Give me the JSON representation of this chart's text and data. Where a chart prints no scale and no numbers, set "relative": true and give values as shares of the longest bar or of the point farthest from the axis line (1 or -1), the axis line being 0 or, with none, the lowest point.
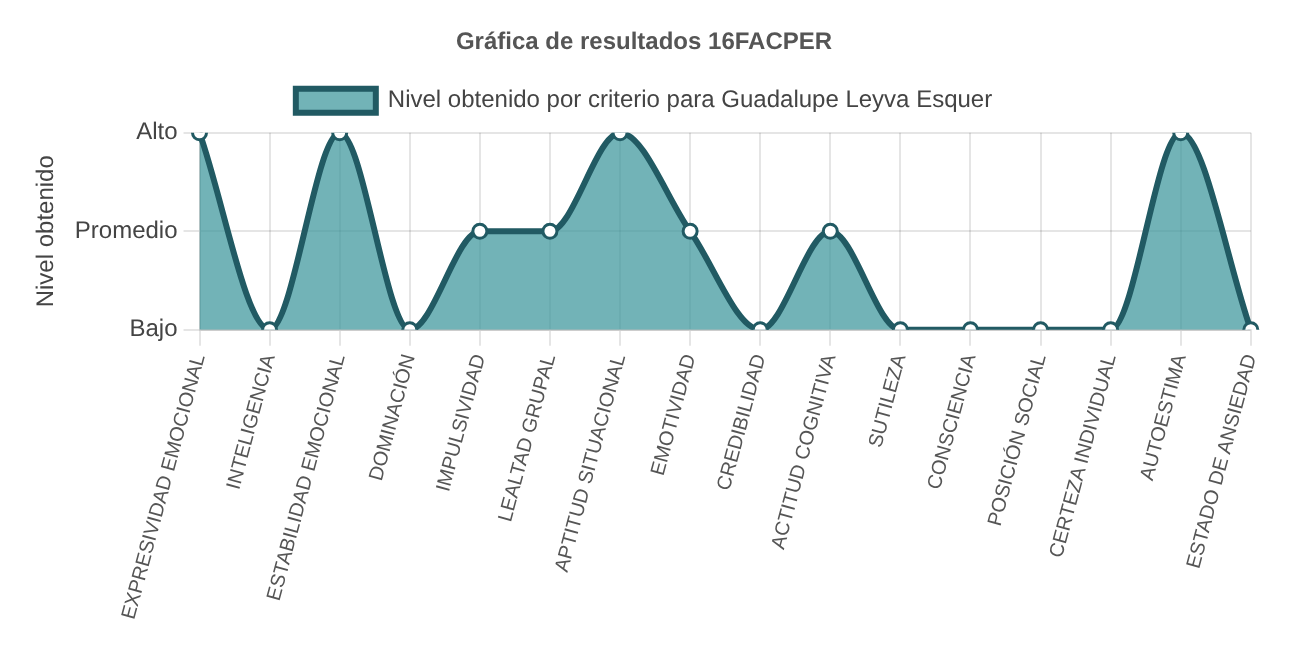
{
  "chart_data": {
    "type": "area",
    "title": "Gráfica de resultados 16FACPER",
    "ylabel": "Nivel obtenido",
    "categories": [
      "EXPRESIVIDAD EMOCIONAL",
      "INTELIGENCIA",
      "ESTABILIDAD EMOCIONAL",
      "DOMINACIÓN",
      "IMPULSIVIDAD",
      "LEALTAD GRUPAL",
      "APTITUD SITUACIONAL",
      "EMOTIVIDAD",
      "CREDIBILIDAD",
      "ACTITUD COGNITIVA",
      "SUTILEZA",
      "CONSCIENCIA",
      "POSICIÓN SOCIAL",
      "CERTEZA INDIVIDUAL",
      "AUTOESTIMA",
      "ESTADO DE ANSIEDAD"
    ],
    "series": [
      {
        "name": "Nivel obtenido por criterio para Guadalupe Leyva Esquer",
        "color": "#215a63",
        "values": [
          1,
          0,
          1,
          0,
          0.5,
          0.5,
          1,
          0.5,
          0,
          0.5,
          0,
          0,
          0,
          0,
          1,
          0
        ]
      }
    ],
    "relative": true,
    "annotations": [
      "Bajo",
      "Promedio",
      "Alto"
    ],
    "grid": true,
    "legend": "top",
    "marker": "circle"
  }
}
